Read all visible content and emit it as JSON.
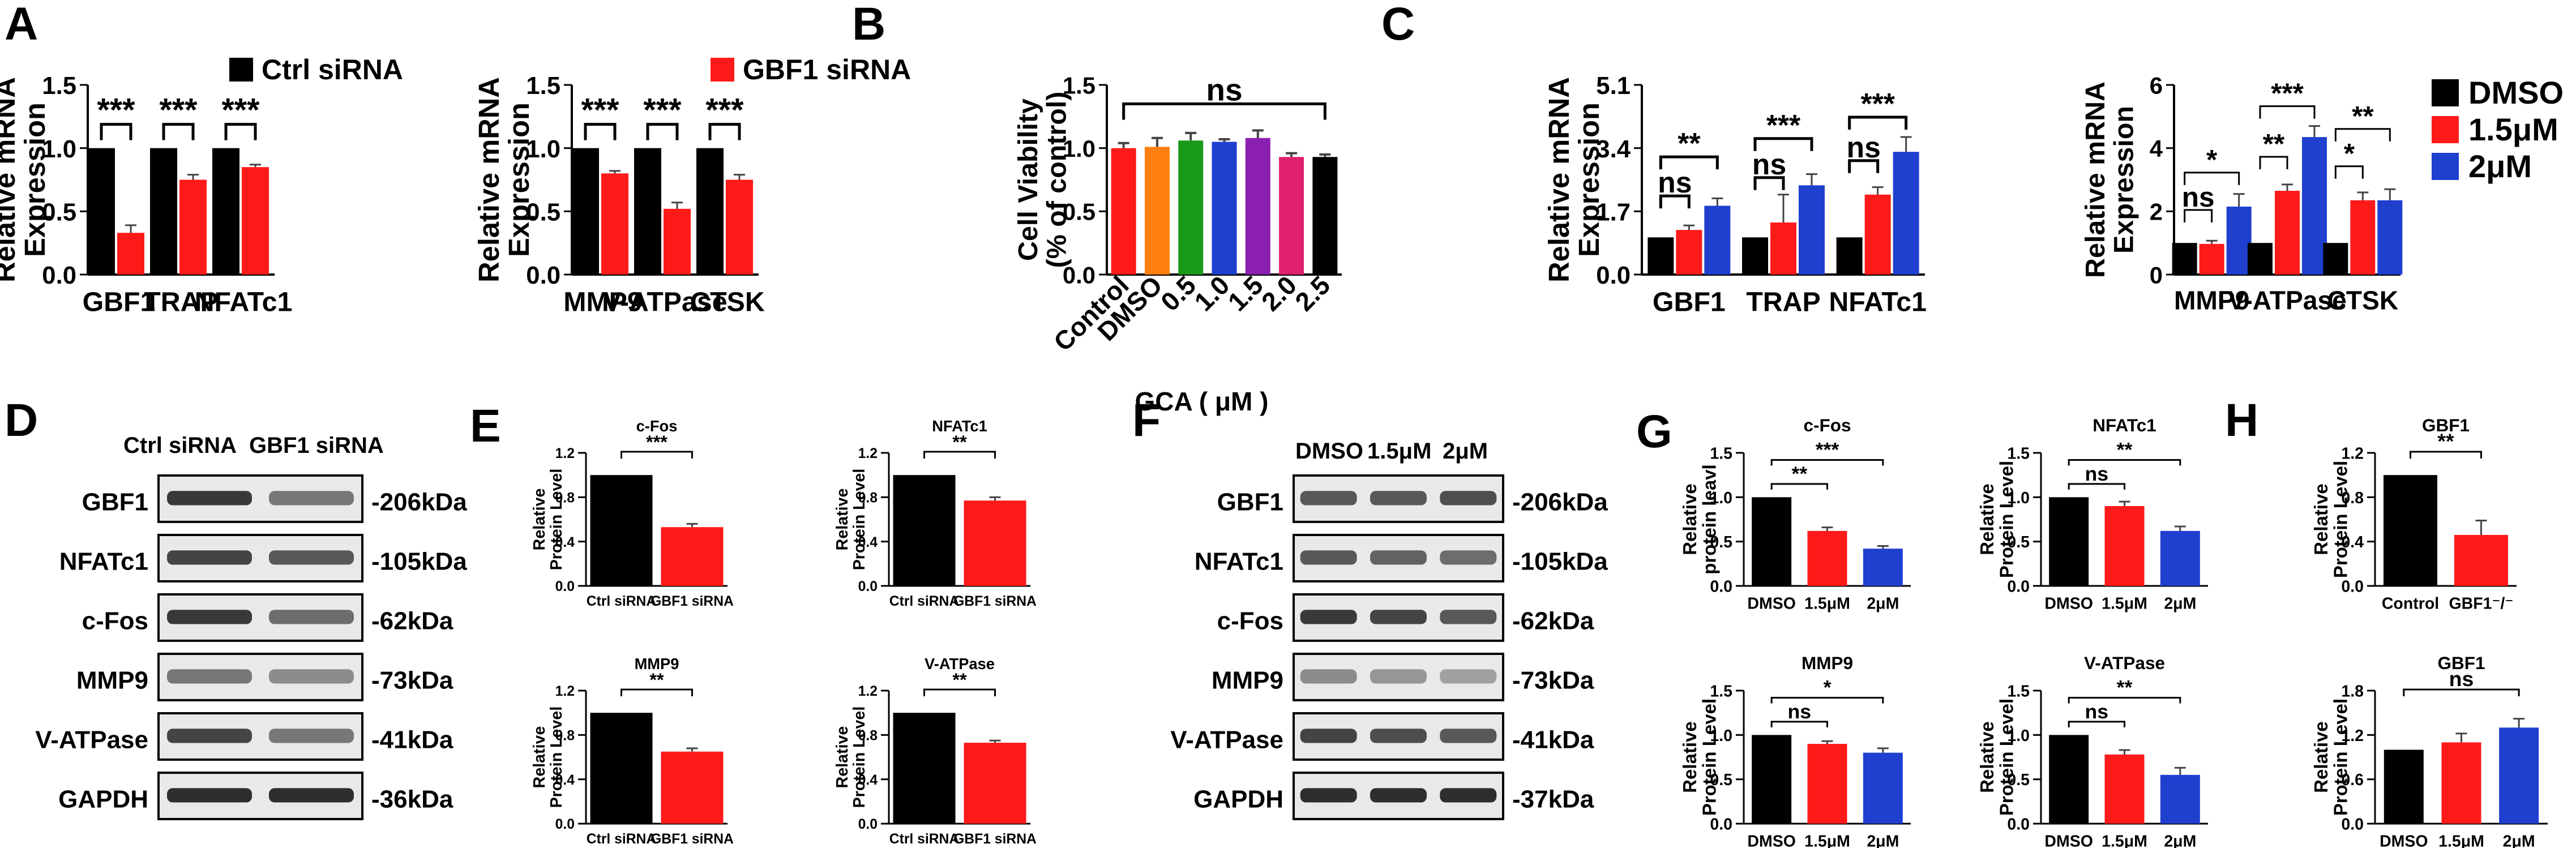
{
  "figure": {
    "panel_labels": [
      "A",
      "B",
      "C",
      "D",
      "E",
      "F",
      "G",
      "H"
    ],
    "colors": {
      "black": "#000000",
      "red": "#ff1a1a",
      "blue": "#1f3fcf",
      "orange": "#ff7f0e",
      "green": "#1a9a1a",
      "purple": "#8b1fb0",
      "magenta": "#e0206f",
      "error": "#555555"
    }
  },
  "legends": {
    "A1": {
      "label": "Ctrl siRNA",
      "color": "#000000"
    },
    "A2": {
      "label": "GBF1 siRNA",
      "color": "#ff1a1a"
    },
    "C": [
      {
        "label": "DMSO",
        "color": "#000000"
      },
      {
        "label": "1.5μM",
        "color": "#ff1a1a"
      },
      {
        "label": "2μM",
        "color": "#1f3fcf"
      }
    ]
  },
  "blots": {
    "D": {
      "headers": [
        "Ctrl siRNA",
        "GBF1 siRNA"
      ],
      "proteins": [
        "GBF1",
        "NFATc1",
        "c-Fos",
        "MMP9",
        "V-ATPase",
        "GAPDH"
      ],
      "sizes": [
        "-206kDa",
        "-105kDa",
        "-62kDa",
        "-73kDa",
        "-41kDa",
        "-36kDa"
      ]
    },
    "F": {
      "headers": [
        "DMSO",
        "1.5μM",
        "2μM"
      ],
      "proteins": [
        "GBF1",
        "NFATc1",
        "c-Fos",
        "MMP9",
        "V-ATPase",
        "GAPDH"
      ],
      "sizes": [
        "-206kDa",
        "-105kDa",
        "-62kDa",
        "-73kDa",
        "-41kDa",
        "-37kDa"
      ]
    }
  },
  "chart_data": [
    {
      "id": "A1",
      "type": "bar",
      "ylabel": "Relative mRNA\nExpression",
      "categories": [
        "GBF1",
        "TRAP",
        "NFATc1"
      ],
      "series": [
        {
          "name": "Ctrl siRNA",
          "values": [
            1,
            1,
            1
          ]
        },
        {
          "name": "GBF1 siRNA",
          "values": [
            0.33,
            0.75,
            0.85
          ]
        }
      ],
      "errors": [
        [
          0,
          0,
          0
        ],
        [
          0.06,
          0.04,
          0.02
        ]
      ],
      "ylim": [
        0,
        1.5
      ],
      "yticks": [
        "0.0",
        "0.5",
        "1.0",
        "1.5"
      ],
      "sig": [
        "***",
        "***",
        "***"
      ]
    },
    {
      "id": "A2",
      "type": "bar",
      "ylabel": "Relative mRNA\nExpression",
      "categories": [
        "MMP9",
        "V-ATPase",
        "CTSK"
      ],
      "series": [
        {
          "name": "Ctrl siRNA",
          "values": [
            1,
            1,
            1
          ]
        },
        {
          "name": "GBF1 siRNA",
          "values": [
            0.8,
            0.52,
            0.75
          ]
        }
      ],
      "errors": [
        [
          0,
          0,
          0
        ],
        [
          0.02,
          0.05,
          0.04
        ]
      ],
      "ylim": [
        0,
        1.5
      ],
      "yticks": [
        "0.0",
        "0.5",
        "1.0",
        "1.5"
      ],
      "sig": [
        "***",
        "***",
        "***"
      ]
    },
    {
      "id": "B",
      "type": "bar",
      "ylabel": "Cell Viability\n(% of control)",
      "xlabel": "GCA ( μM )",
      "categories": [
        "Control",
        "DMSO",
        "0.5",
        "1.0",
        "1.5",
        "2.0",
        "2.5"
      ],
      "values": [
        1.0,
        1.01,
        1.06,
        1.05,
        1.08,
        0.93,
        0.93
      ],
      "errors": [
        0.04,
        0.07,
        0.06,
        0.02,
        0.06,
        0.03,
        0.02
      ],
      "ylim": [
        0,
        1.5
      ],
      "yticks": [
        "0.0",
        "0.5",
        "1.0",
        "1.5"
      ],
      "sig": "ns"
    },
    {
      "id": "C1",
      "type": "bar",
      "ylabel": "Relative mRNA\nExpression",
      "categories": [
        "GBF1",
        "TRAP",
        "NFATc1"
      ],
      "series": [
        {
          "name": "DMSO",
          "values": [
            1,
            1,
            1
          ]
        },
        {
          "name": "1.5μM",
          "values": [
            1.2,
            1.4,
            2.15
          ]
        },
        {
          "name": "2μM",
          "values": [
            1.85,
            2.4,
            3.3
          ]
        }
      ],
      "errors": [
        [
          0,
          0,
          0
        ],
        [
          0.12,
          0.75,
          0.2
        ],
        [
          0.2,
          0.3,
          0.4
        ]
      ],
      "ylim": [
        0,
        5.1
      ],
      "yticks": [
        "0.0",
        "1.7",
        "3.4",
        "5.1"
      ],
      "sig": [
        [
          "ns",
          "**"
        ],
        [
          "ns",
          "***"
        ],
        [
          "ns",
          "***"
        ]
      ]
    },
    {
      "id": "C2",
      "type": "bar",
      "ylabel": "Relative mRNA\nExpression",
      "categories": [
        "MMP9",
        "V-ATPase",
        "CTSK"
      ],
      "series": [
        {
          "name": "DMSO",
          "values": [
            1,
            1,
            1
          ]
        },
        {
          "name": "1.5μM",
          "values": [
            0.97,
            2.65,
            2.35
          ]
        },
        {
          "name": "2μM",
          "values": [
            2.15,
            4.35,
            2.35
          ]
        }
      ],
      "errors": [
        [
          0,
          0,
          0
        ],
        [
          0.1,
          0.2,
          0.25
        ],
        [
          0.4,
          0.35,
          0.35
        ]
      ],
      "ylim": [
        0,
        6
      ],
      "yticks": [
        "0",
        "2",
        "4",
        "6"
      ],
      "sig": [
        [
          "ns",
          "*"
        ],
        [
          "**",
          "***"
        ],
        [
          "*",
          "**"
        ]
      ]
    },
    {
      "id": "E1",
      "type": "bar",
      "title": "c-Fos",
      "ylabel": "Relative\nProtein Level",
      "categories": [
        "Ctrl siRNA",
        "GBF1 siRNA"
      ],
      "values": [
        1,
        0.53
      ],
      "errors": [
        0,
        0.03
      ],
      "ylim": [
        0,
        1.2
      ],
      "yticks": [
        "0.0",
        "0.4",
        "0.8",
        "1.2"
      ],
      "sig": "***"
    },
    {
      "id": "E2",
      "type": "bar",
      "title": "NFATc1",
      "ylabel": "Relative\nProtein Level",
      "categories": [
        "Ctrl siRNA",
        "GBF1 siRNA"
      ],
      "values": [
        1,
        0.77
      ],
      "errors": [
        0,
        0.03
      ],
      "ylim": [
        0,
        1.2
      ],
      "yticks": [
        "0.0",
        "0.4",
        "0.8",
        "1.2"
      ],
      "sig": "**"
    },
    {
      "id": "E3",
      "type": "bar",
      "title": "MMP9",
      "ylabel": "Relative\nProtein Level",
      "categories": [
        "Ctrl siRNA",
        "GBF1 siRNA"
      ],
      "values": [
        1,
        0.65
      ],
      "errors": [
        0,
        0.03
      ],
      "ylim": [
        0,
        1.2
      ],
      "yticks": [
        "0.0",
        "0.4",
        "0.8",
        "1.2"
      ],
      "sig": "**"
    },
    {
      "id": "E4",
      "type": "bar",
      "title": "V-ATPase",
      "ylabel": "Relative\nProtein Level",
      "categories": [
        "Ctrl siRNA",
        "GBF1 siRNA"
      ],
      "values": [
        1,
        0.73
      ],
      "errors": [
        0,
        0.02
      ],
      "ylim": [
        0,
        1.2
      ],
      "yticks": [
        "0.0",
        "0.4",
        "0.8",
        "1.2"
      ],
      "sig": "**"
    },
    {
      "id": "G1",
      "type": "bar",
      "title": "c-Fos",
      "ylabel": "Relative\nprotein leavl",
      "categories": [
        "DMSO",
        "1.5μM",
        "2μM"
      ],
      "values": [
        1,
        0.62,
        0.42
      ],
      "errors": [
        0,
        0.04,
        0.03
      ],
      "ylim": [
        0,
        1.5
      ],
      "yticks": [
        "0.0",
        "0.5",
        "1.0",
        "1.5"
      ],
      "sig": [
        {
          "from": 0,
          "to": 1,
          "label": "**"
        },
        {
          "from": 0,
          "to": 2,
          "label": "***"
        }
      ]
    },
    {
      "id": "G2",
      "type": "bar",
      "title": "NFATc1",
      "ylabel": "Relative\nProtein Level",
      "categories": [
        "DMSO",
        "1.5μM",
        "2μM"
      ],
      "values": [
        1,
        0.9,
        0.62
      ],
      "errors": [
        0,
        0.05,
        0.05
      ],
      "ylim": [
        0,
        1.5
      ],
      "yticks": [
        "0.0",
        "0.5",
        "1.0",
        "1.5"
      ],
      "sig": [
        {
          "from": 0,
          "to": 1,
          "label": "ns"
        },
        {
          "from": 0,
          "to": 2,
          "label": "**"
        }
      ]
    },
    {
      "id": "G3",
      "type": "bar",
      "title": "MMP9",
      "ylabel": "Relative\nProtein Level",
      "categories": [
        "DMSO",
        "1.5μM",
        "2μM"
      ],
      "values": [
        1,
        0.9,
        0.8
      ],
      "errors": [
        0,
        0.03,
        0.05
      ],
      "ylim": [
        0,
        1.5
      ],
      "yticks": [
        "0.0",
        "0.5",
        "1.0",
        "1.5"
      ],
      "sig": [
        {
          "from": 0,
          "to": 1,
          "label": "ns"
        },
        {
          "from": 0,
          "to": 2,
          "label": "*"
        }
      ]
    },
    {
      "id": "G4",
      "type": "bar",
      "title": "V-ATPase",
      "ylabel": "Relative\nProtein Level",
      "categories": [
        "DMSO",
        "1.5μM",
        "2μM"
      ],
      "values": [
        1,
        0.78,
        0.55
      ],
      "errors": [
        0,
        0.05,
        0.08
      ],
      "ylim": [
        0,
        1.5
      ],
      "yticks": [
        "0.0",
        "0.5",
        "1.0",
        "1.5"
      ],
      "sig": [
        {
          "from": 0,
          "to": 1,
          "label": "ns"
        },
        {
          "from": 0,
          "to": 2,
          "label": "**"
        }
      ]
    },
    {
      "id": "H1",
      "type": "bar",
      "title": "GBF1",
      "ylabel": "Relative\nProtein Level",
      "categories": [
        "Control",
        "GBF1⁻/⁻"
      ],
      "values": [
        1,
        0.46
      ],
      "errors": [
        0,
        0.13
      ],
      "ylim": [
        0,
        1.2
      ],
      "yticks": [
        "0.0",
        "0.4",
        "0.8",
        "1.2"
      ],
      "sig": "**"
    },
    {
      "id": "H2",
      "type": "bar",
      "title": "GBF1",
      "ylabel": "Relative\nProtein Level",
      "categories": [
        "DMSO",
        "1.5μM",
        "2μM"
      ],
      "values": [
        1,
        1.1,
        1.3
      ],
      "errors": [
        0,
        0.12,
        0.12
      ],
      "ylim": [
        0,
        1.8
      ],
      "yticks": [
        "0.0",
        "0.6",
        "1.2",
        "1.8"
      ],
      "sig": "ns"
    }
  ]
}
